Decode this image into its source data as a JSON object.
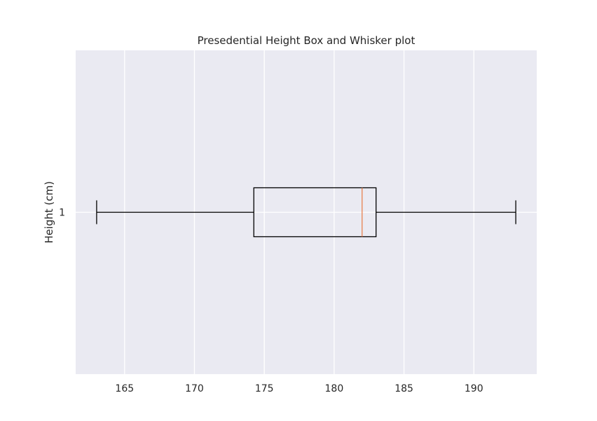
{
  "chart_data": {
    "type": "box",
    "orientation": "horizontal",
    "title": "Presedential Height Box and Whisker plot",
    "xlabel": "",
    "ylabel": "Height (cm)",
    "xlim": [
      161.5,
      194.5
    ],
    "xticks": [
      165,
      170,
      175,
      180,
      185,
      190
    ],
    "yticks": [
      "1"
    ],
    "grid": true,
    "series": [
      {
        "category": "1",
        "whisker_low": 163,
        "q1": 174.25,
        "median": 182,
        "q3": 183,
        "whisker_high": 193
      }
    ],
    "colors": {
      "plot_background": "#eaeaf2",
      "grid": "#ffffff",
      "box": "#000000",
      "median": "#e8804f",
      "text": "#262626"
    }
  }
}
